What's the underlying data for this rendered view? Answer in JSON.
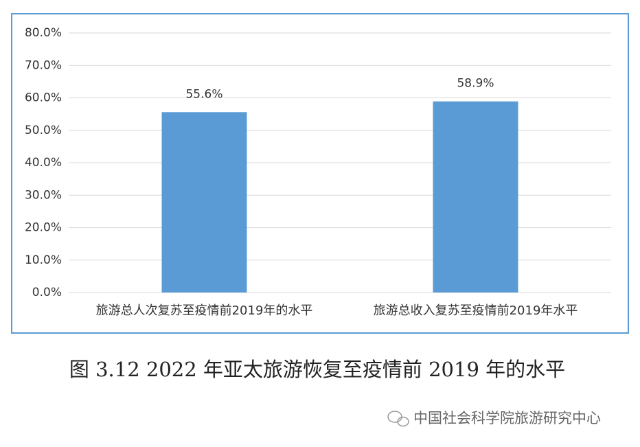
{
  "chart_data": {
    "type": "bar",
    "title": "图 3.12 2022 年亚太旅游恢复至疫情前 2019 年的水平",
    "categories": [
      "旅游总人次复苏至疫情前2019年的水平",
      "旅游总收入复苏至疫情前2019年水平"
    ],
    "values": [
      55.6,
      58.9
    ],
    "value_labels": [
      "55.6%",
      "58.9%"
    ],
    "color": "#5b9bd5",
    "ylim": [
      0,
      80
    ],
    "yticks": [
      {
        "value": 0,
        "label": "0.0%"
      },
      {
        "value": 10,
        "label": "10.0%"
      },
      {
        "value": 20,
        "label": "20.0%"
      },
      {
        "value": 30,
        "label": "30.0%"
      },
      {
        "value": 40,
        "label": "40.0%"
      },
      {
        "value": 50,
        "label": "50.0%"
      },
      {
        "value": 60,
        "label": "60.0%"
      },
      {
        "value": 70,
        "label": "70.0%"
      },
      {
        "value": 80,
        "label": "80.0%"
      }
    ],
    "grid": true,
    "watermark": "中国社会科学院旅游研究中心"
  }
}
